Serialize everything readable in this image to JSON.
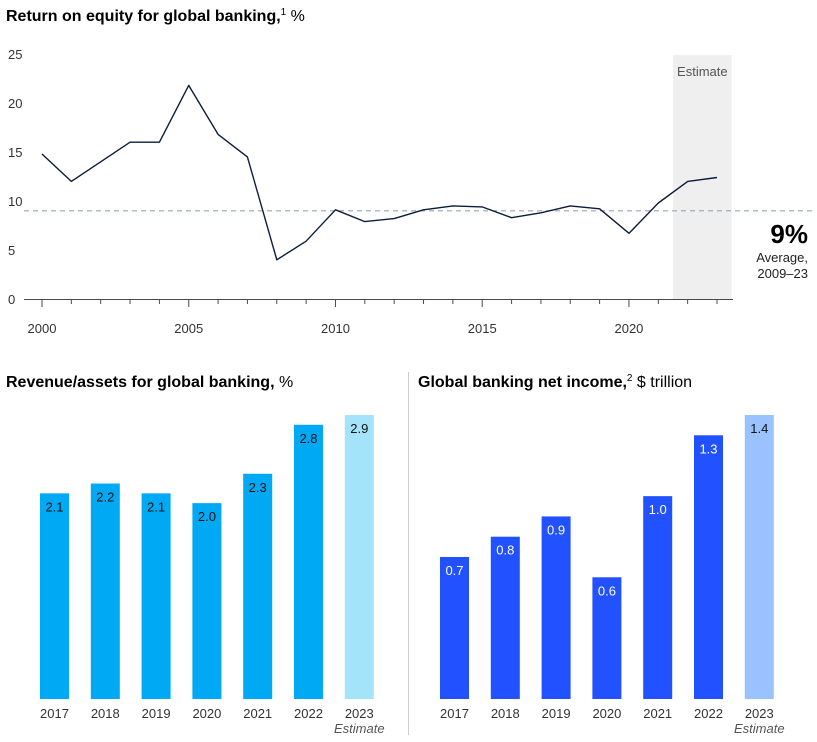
{
  "colors": {
    "line": "#0b1d3a",
    "avg_line": "#9aa3ad",
    "estimate_band": "#efefef",
    "rev_bar": "#00a9f4",
    "rev_bar_estimate": "#a3e4fb",
    "income_bar": "#2251ff",
    "income_bar_estimate": "#99c2ff",
    "axis": "#4a4a4a",
    "divider": "#cfcfcf"
  },
  "chart_data": [
    {
      "type": "line",
      "title": "Return on equity for global banking,",
      "title_sup": "1",
      "title_unit": " %",
      "x": [
        2000,
        2001,
        2002,
        2003,
        2004,
        2005,
        2006,
        2007,
        2008,
        2009,
        2010,
        2011,
        2012,
        2013,
        2014,
        2015,
        2016,
        2017,
        2018,
        2019,
        2020,
        2021,
        2022,
        2023
      ],
      "y": [
        14.8,
        12.0,
        14.0,
        16.0,
        16.0,
        21.8,
        16.8,
        14.5,
        4.0,
        5.9,
        9.1,
        7.9,
        8.2,
        9.1,
        9.5,
        9.4,
        8.3,
        8.8,
        9.5,
        9.2,
        6.7,
        9.8,
        12.0,
        12.4
      ],
      "ylim": [
        0,
        25
      ],
      "yticks": [
        "0",
        "5",
        "10",
        "15",
        "20",
        "25"
      ],
      "xticks": [
        "2000",
        "2005",
        "2010",
        "2015",
        "2020"
      ],
      "estimate_label": "Estimate",
      "estimate_range": [
        2021.5,
        2023.5
      ],
      "average": {
        "value": 9,
        "label_big": "9%",
        "label_line1": "Average,",
        "label_line2": "2009–23"
      },
      "grid": false
    },
    {
      "type": "bar",
      "title": "Revenue/assets for global banking,",
      "title_unit": " %",
      "categories": [
        "2017",
        "2018",
        "2019",
        "2020",
        "2021",
        "2022",
        "2023"
      ],
      "values": [
        2.1,
        2.2,
        2.1,
        2.0,
        2.3,
        2.8,
        2.9
      ],
      "labels": [
        "2.1",
        "2.2",
        "2.1",
        "2.0",
        "2.3",
        "2.8",
        "2.9"
      ],
      "estimate_index": 6,
      "estimate_label": "Estimate"
    },
    {
      "type": "bar",
      "title": "Global banking net income,",
      "title_sup": "2",
      "title_unit": " $ trillion",
      "categories": [
        "2017",
        "2018",
        "2019",
        "2020",
        "2021",
        "2022",
        "2023"
      ],
      "values": [
        0.7,
        0.8,
        0.9,
        0.6,
        1.0,
        1.3,
        1.4
      ],
      "labels": [
        "0.7",
        "0.8",
        "0.9",
        "0.6",
        "1.0",
        "1.3",
        "1.4"
      ],
      "estimate_index": 6,
      "estimate_label": "Estimate"
    }
  ]
}
